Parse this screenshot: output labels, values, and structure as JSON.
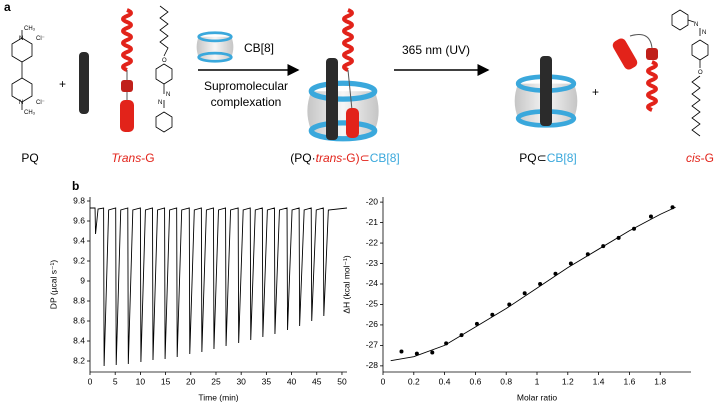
{
  "scheme": {
    "panel_a": "a",
    "panel_b": "b",
    "pq_structure": [
      "CH₃",
      "Cl⁻",
      "N",
      "N",
      "Cl⁻",
      "CH₃"
    ],
    "trans_azo_structure": [
      "O",
      "N",
      "N"
    ],
    "cis_azo_structure": [
      "N",
      "N",
      "O"
    ],
    "plus": "+",
    "cb8_label": "CB[8]",
    "arrow1_label": [
      "Supromolecular",
      "complexation"
    ],
    "arrow2_label": "365 nm (UV)",
    "pq": "PQ",
    "trans_g": [
      "Trans",
      "-G"
    ],
    "complex": [
      "(PQ·",
      "trans",
      "-G)⊂",
      "CB[8]"
    ],
    "pq_cb8": [
      "PQ⊂",
      "CB[8]"
    ],
    "cis_g": [
      "cis",
      "-G"
    ]
  },
  "chart_data": [
    {
      "type": "line",
      "x_label": "Time (min)",
      "y_label": "DP (µcal s⁻¹)",
      "color": "#000000",
      "x": [
        0,
        1.0,
        1.1,
        1.6,
        2.7,
        2.8,
        3.7,
        5.1,
        5.2,
        6.1,
        7.5,
        7.6,
        8.5,
        10.0,
        10.1,
        11.0,
        12.4,
        12.5,
        13.4,
        14.8,
        14.9,
        15.8,
        17.2,
        17.3,
        18.2,
        19.7,
        19.8,
        20.7,
        22.1,
        22.2,
        23.1,
        24.5,
        24.6,
        25.5,
        26.9,
        27.0,
        27.9,
        29.4,
        29.5,
        30.4,
        31.8,
        31.9,
        32.8,
        34.2,
        34.3,
        35.2,
        36.6,
        36.7,
        37.6,
        39.1,
        39.2,
        40.1,
        41.5,
        41.6,
        42.5,
        43.9,
        44.0,
        44.9,
        46.3,
        46.4,
        47.3,
        51
      ],
      "values": [
        9.73,
        9.73,
        9.47,
        9.72,
        9.73,
        8.15,
        9.71,
        9.73,
        8.16,
        9.71,
        9.73,
        8.17,
        9.71,
        9.73,
        8.19,
        9.71,
        9.73,
        8.21,
        9.71,
        9.73,
        8.22,
        9.71,
        9.73,
        8.24,
        9.71,
        9.73,
        8.27,
        9.71,
        9.73,
        8.29,
        9.71,
        9.73,
        8.32,
        9.71,
        9.73,
        8.35,
        9.71,
        9.73,
        8.38,
        9.71,
        9.73,
        8.41,
        9.71,
        9.73,
        8.44,
        9.71,
        9.73,
        8.47,
        9.71,
        9.73,
        8.51,
        9.71,
        9.73,
        8.55,
        9.71,
        9.73,
        8.6,
        9.71,
        9.73,
        8.65,
        9.71,
        9.73
      ],
      "xlim": [
        0,
        51
      ],
      "xticks": [
        0,
        5,
        10,
        15,
        20,
        25,
        30,
        35,
        40,
        45,
        50
      ],
      "ylim": [
        8.09,
        9.84
      ],
      "yticks": [
        8.2,
        8.4,
        8.6,
        8.8,
        9,
        9.2,
        9.4,
        9.6,
        9.8
      ]
    },
    {
      "type": "scatter",
      "x_label": "Molar ratio",
      "y_label": "ΔH (kcal mol⁻¹)",
      "series": [
        {
          "type": "scatter",
          "color": "#000000",
          "x": [
            0.12,
            0.22,
            0.32,
            0.41,
            0.51,
            0.61,
            0.71,
            0.82,
            0.92,
            1.02,
            1.12,
            1.22,
            1.33,
            1.43,
            1.53,
            1.63,
            1.74,
            1.88
          ],
          "values": [
            -27.3,
            -27.4,
            -27.35,
            -26.9,
            -26.5,
            -25.95,
            -25.5,
            -25.0,
            -24.45,
            -24.0,
            -23.5,
            -23.0,
            -22.55,
            -22.15,
            -21.75,
            -21.3,
            -20.7,
            -20.25
          ]
        },
        {
          "type": "line",
          "color": "#000000",
          "x": [
            0.05,
            0.2,
            0.4,
            0.6,
            0.8,
            1.0,
            1.2,
            1.4,
            1.6,
            1.8,
            1.9
          ],
          "values": [
            -27.75,
            -27.55,
            -27.0,
            -26.1,
            -25.2,
            -24.2,
            -23.2,
            -22.3,
            -21.4,
            -20.6,
            -20.25
          ]
        }
      ],
      "xlim": [
        0,
        2
      ],
      "xticks": [
        0,
        0.2,
        0.4,
        0.6,
        0.8,
        1,
        1.2,
        1.4,
        1.6,
        1.8
      ],
      "ylim": [
        -28.3,
        -19.75
      ],
      "yticks": [
        -28,
        -27,
        -26,
        -25,
        -24,
        -23,
        -22,
        -21,
        -20
      ]
    }
  ]
}
